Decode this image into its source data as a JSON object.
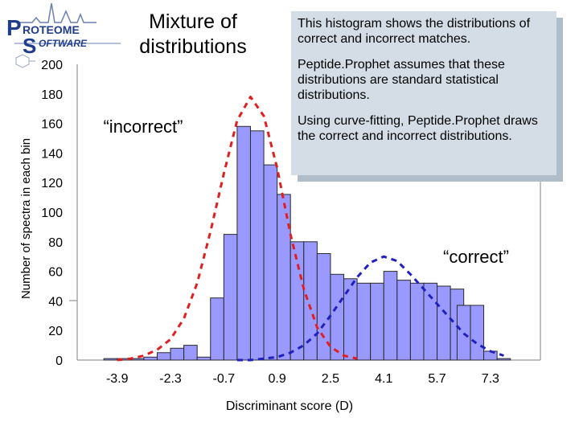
{
  "logo": {
    "text_line1": "ROTEOME",
    "text_line2": "OFTWARE",
    "letter_p": "P",
    "letter_s": "S",
    "color": "#1f3d8c"
  },
  "slide_title": "Mixture of distributions",
  "callout": {
    "paragraphs": [
      "This histogram shows the distributions of correct and incorrect matches.",
      "Peptide.Prophet assumes that these distributions are standard statistical distributions.",
      "Using curve-fitting, Peptide.Prophet draws the correct and incorrect distributions."
    ],
    "background": "#d4dde6"
  },
  "annotations": {
    "incorrect": "“incorrect”",
    "correct": "“correct”"
  },
  "chart_data": {
    "type": "bar",
    "xlabel": "Discriminant score (D)",
    "ylabel": "Number of spectra in each bin",
    "ylim": [
      0,
      200
    ],
    "yticks": [
      0,
      20,
      40,
      60,
      80,
      100,
      120,
      140,
      160,
      180,
      200
    ],
    "xtick_labels": [
      "-3.9",
      "-2.3",
      "-0.7",
      "0.9",
      "2.5",
      "4.1",
      "5.7",
      "7.3"
    ],
    "xtick_values": [
      -3.9,
      -2.3,
      -0.7,
      0.9,
      2.5,
      4.1,
      5.7,
      7.3
    ],
    "xlim": [
      -5.1,
      8.8
    ],
    "bin_width": 0.4,
    "bin_starts": [
      -4.3,
      -3.9,
      -3.5,
      -3.1,
      -2.7,
      -2.3,
      -1.9,
      -1.5,
      -1.1,
      -0.7,
      -0.3,
      0.1,
      0.5,
      0.9,
      1.3,
      1.7,
      2.1,
      2.5,
      2.9,
      3.3,
      3.7,
      4.1,
      4.5,
      4.9,
      5.3,
      5.7,
      6.1,
      6.3,
      6.7,
      7.1,
      7.5
    ],
    "values": [
      1,
      1,
      1,
      2,
      5,
      8,
      10,
      2,
      42,
      85,
      158,
      155,
      132,
      112,
      80,
      80,
      72,
      58,
      55,
      52,
      52,
      60,
      54,
      52,
      52,
      50,
      48,
      37,
      37,
      6,
      1
    ],
    "bar_color": "#9999ff",
    "bar_edge_color": "#2a2a2a",
    "series": [
      {
        "name": "“incorrect”",
        "style": "dashed",
        "color": "#e02020",
        "x": [
          -3.9,
          -3.5,
          -3.1,
          -2.7,
          -2.3,
          -1.9,
          -1.5,
          -1.1,
          -0.7,
          -0.3,
          0.1,
          0.5,
          0.9,
          1.3,
          1.7,
          2.1,
          2.5,
          2.9,
          3.3
        ],
        "y": [
          0,
          1,
          3,
          7,
          14,
          28,
          52,
          87,
          126,
          162,
          178,
          165,
          130,
          85,
          48,
          22,
          9,
          3,
          1
        ]
      },
      {
        "name": "“correct”",
        "style": "dashed",
        "color": "#2020c0",
        "x": [
          -0.3,
          0.1,
          0.5,
          0.9,
          1.3,
          1.7,
          2.1,
          2.5,
          2.9,
          3.3,
          3.7,
          4.1,
          4.5,
          4.9,
          5.3,
          5.7,
          6.1,
          6.5,
          6.9,
          7.3,
          7.7
        ],
        "y": [
          0,
          0,
          1,
          2,
          5,
          10,
          18,
          30,
          43,
          56,
          66,
          70,
          67,
          58,
          48,
          38,
          28,
          18,
          11,
          6,
          3
        ]
      }
    ]
  }
}
